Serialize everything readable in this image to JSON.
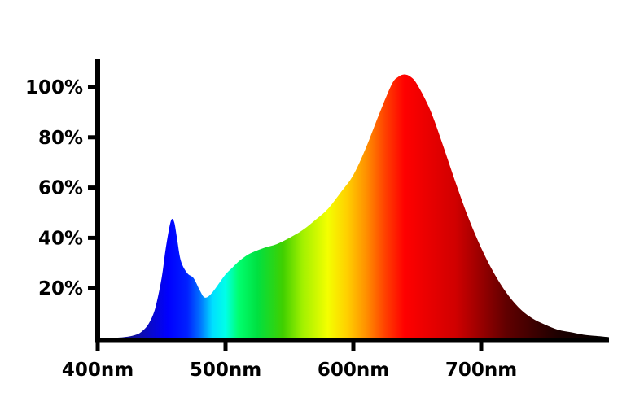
{
  "chart_data": {
    "type": "area",
    "title": "",
    "xlabel": "",
    "ylabel": "",
    "xlim": [
      400,
      800
    ],
    "ylim": [
      0,
      112
    ],
    "x_ticks": [
      {
        "value": 400,
        "label": "400nm"
      },
      {
        "value": 500,
        "label": "500nm"
      },
      {
        "value": 600,
        "label": "600nm"
      },
      {
        "value": 700,
        "label": "700nm"
      }
    ],
    "y_ticks": [
      {
        "value": 20,
        "label": "20%"
      },
      {
        "value": 40,
        "label": "40%"
      },
      {
        "value": 60,
        "label": "60%"
      },
      {
        "value": 80,
        "label": "80%"
      },
      {
        "value": 100,
        "label": "100%"
      }
    ],
    "grid": false,
    "fill": "visible-spectrum-gradient",
    "series": [
      {
        "x": [
          400,
          420,
          430,
          435,
          440,
          445,
          450,
          453,
          456,
          458,
          460,
          462,
          465,
          470,
          475,
          480,
          483,
          486,
          490,
          495,
          500,
          505,
          510,
          515,
          520,
          530,
          540,
          550,
          560,
          570,
          580,
          590,
          600,
          610,
          620,
          630,
          635,
          640,
          645,
          650,
          660,
          670,
          680,
          690,
          700,
          710,
          720,
          730,
          740,
          750,
          760,
          770,
          780,
          790,
          800
        ],
        "values": [
          0,
          0.5,
          1.5,
          3,
          6,
          12,
          24,
          35,
          44,
          47.5,
          46,
          40,
          31,
          26,
          24,
          19,
          16.5,
          16.5,
          18.5,
          22,
          25.5,
          28,
          30.5,
          32.5,
          34,
          36,
          37.5,
          40,
          43,
          47,
          51.5,
          58,
          65,
          76,
          89,
          101,
          104,
          105,
          104,
          101,
          91,
          77,
          62,
          48,
          36,
          26,
          18,
          12,
          8,
          5.5,
          3.5,
          2.5,
          1.5,
          1,
          0.5
        ]
      }
    ],
    "spectrum_colors": [
      {
        "nm": 400,
        "color": "#000050"
      },
      {
        "nm": 430,
        "color": "#1010a0"
      },
      {
        "nm": 455,
        "color": "#0000ff"
      },
      {
        "nm": 470,
        "color": "#0020ff"
      },
      {
        "nm": 480,
        "color": "#0070ff"
      },
      {
        "nm": 490,
        "color": "#00e0ff"
      },
      {
        "nm": 500,
        "color": "#00ffe8"
      },
      {
        "nm": 510,
        "color": "#00ff70"
      },
      {
        "nm": 525,
        "color": "#00e040"
      },
      {
        "nm": 545,
        "color": "#40d000"
      },
      {
        "nm": 560,
        "color": "#a0f000"
      },
      {
        "nm": 580,
        "color": "#f4ff00"
      },
      {
        "nm": 595,
        "color": "#ffd000"
      },
      {
        "nm": 610,
        "color": "#ff9000"
      },
      {
        "nm": 625,
        "color": "#ff4000"
      },
      {
        "nm": 640,
        "color": "#ff0000"
      },
      {
        "nm": 680,
        "color": "#d00000"
      },
      {
        "nm": 720,
        "color": "#600000"
      },
      {
        "nm": 760,
        "color": "#1e0000"
      },
      {
        "nm": 800,
        "color": "#000000"
      }
    ]
  }
}
